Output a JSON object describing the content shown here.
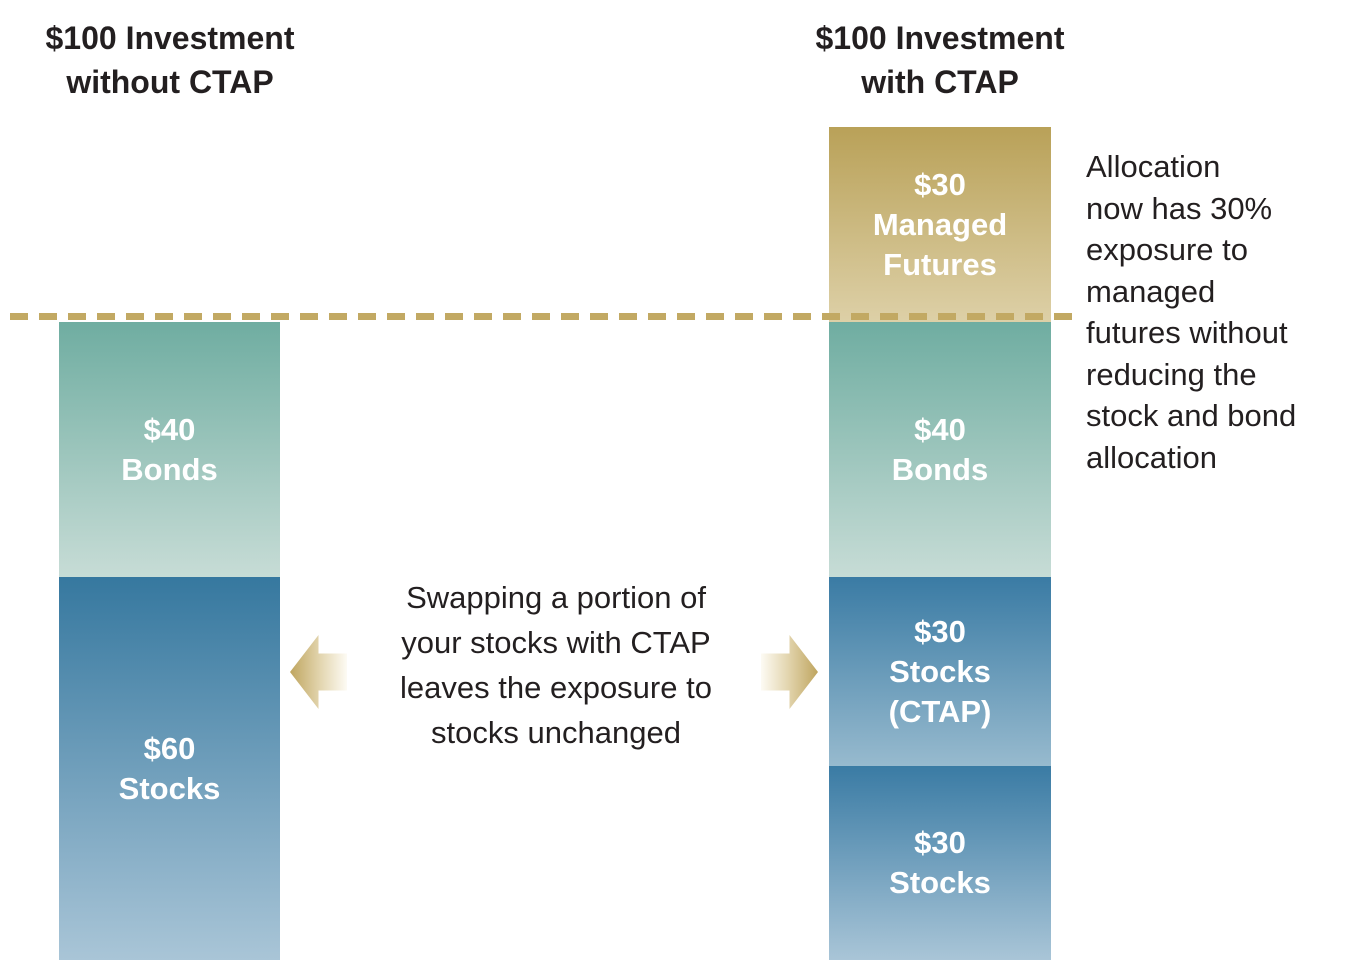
{
  "left": {
    "title": "$100 Investment\nwithout CTAP",
    "segments": [
      {
        "name": "bonds",
        "label": "$40\nBonds",
        "value": 40
      },
      {
        "name": "stocks",
        "label": "$60\nStocks",
        "value": 60
      }
    ]
  },
  "right": {
    "title": "$100 Investment\nwith CTAP",
    "segments": [
      {
        "name": "managed-futures",
        "label": "$30\nManaged\nFutures",
        "value": 30
      },
      {
        "name": "bonds",
        "label": "$40\nBonds",
        "value": 40
      },
      {
        "name": "stocks-ctap",
        "label": "$30\nStocks\n(CTAP)",
        "value": 30
      },
      {
        "name": "stocks",
        "label": "$30\nStocks",
        "value": 30
      }
    ]
  },
  "center_note": "Swapping a portion of\nyour stocks with CTAP\nleaves the exposure to\nstocks unchanged",
  "side_note": "Allocation\nnow has 30%\nexposure to\nmanaged\nfutures without\nreducing the\nstock and bond\nallocation",
  "colors": {
    "gold_dark": "#B9A158",
    "gold_light": "#DDD0A7",
    "teal_dark": "#6FADA1",
    "teal_light": "#C7DCD6",
    "blue_dark": "#36789F",
    "blue_light": "#A9C5D7",
    "dash_gold": "#C2A963",
    "arrow_gold": "#BFA55F",
    "text_dark": "#231F20",
    "text_white": "#FFFFFF"
  },
  "chart_data": {
    "type": "bar",
    "subtype": "stacked_comparison",
    "title": "",
    "categories": [
      "$100 Investment without CTAP",
      "$100 Investment with CTAP"
    ],
    "series": [
      {
        "name": "Stocks",
        "values": [
          60,
          30
        ]
      },
      {
        "name": "Stocks (CTAP)",
        "values": [
          0,
          30
        ]
      },
      {
        "name": "Bonds",
        "values": [
          40,
          40
        ]
      },
      {
        "name": "Managed Futures",
        "values": [
          0,
          30
        ]
      }
    ],
    "unit": "$",
    "bar_totals": [
      100,
      130
    ],
    "reference_line": {
      "value": 100,
      "style": "dashed",
      "color": "#C2A963"
    },
    "annotations": [
      "Swapping a portion of your stocks with CTAP leaves the exposure to stocks unchanged",
      "Allocation now has 30% exposure to managed futures without reducing the stock and bond allocation"
    ],
    "legend": false,
    "axes": false,
    "grid": false
  }
}
